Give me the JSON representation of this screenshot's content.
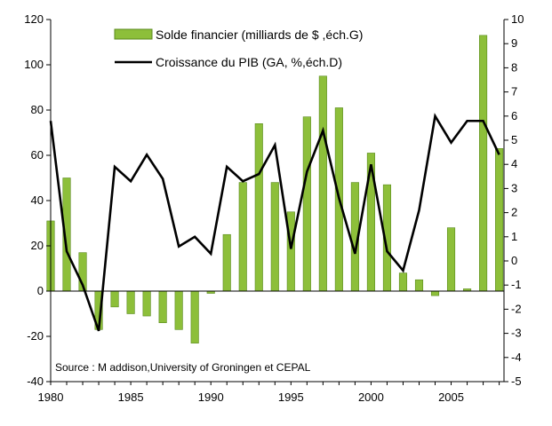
{
  "chart_data": {
    "type": "bar+line",
    "title": "",
    "categories": [
      1980,
      1981,
      1982,
      1983,
      1984,
      1985,
      1986,
      1987,
      1988,
      1989,
      1990,
      1991,
      1992,
      1993,
      1994,
      1995,
      1996,
      1997,
      1998,
      1999,
      2000,
      2001,
      2002,
      2003,
      2004,
      2005,
      2006,
      2007,
      2008
    ],
    "x_tick_labels": [
      "1980",
      "1985",
      "1990",
      "1995",
      "2000",
      "2005"
    ],
    "left_axis": {
      "ylim": [
        -40,
        120
      ],
      "ticks": [
        "-40",
        "-20",
        "0",
        "20",
        "40",
        "60",
        "80",
        "100",
        "120"
      ]
    },
    "right_axis": {
      "ylim": [
        -5,
        10
      ],
      "ticks": [
        "-5",
        "-4",
        "-3",
        "-2",
        "-1",
        "0",
        "1",
        "2",
        "3",
        "4",
        "5",
        "6",
        "7",
        "8",
        "9",
        "10"
      ]
    },
    "series": [
      {
        "name": "Solde financier (milliards de $ ,éch.G)",
        "kind": "bar",
        "axis": "left",
        "color": "#8dbf3a",
        "edge_color": "#5a8a1e",
        "values": [
          31,
          50,
          17,
          -17,
          -7,
          -10,
          -11,
          -14,
          -17,
          -23,
          -1,
          25,
          48,
          74,
          48,
          35,
          77,
          95,
          81,
          48,
          61,
          47,
          8,
          5,
          -2,
          28,
          1,
          113,
          63
        ]
      },
      {
        "name": "Croissance du PIB (GA, %,éch.D)",
        "kind": "line",
        "axis": "right",
        "color": "#000000",
        "values": [
          5.8,
          0.4,
          -1.0,
          -2.9,
          3.9,
          3.3,
          4.4,
          3.4,
          0.6,
          1.0,
          0.3,
          3.9,
          3.3,
          3.6,
          4.8,
          0.5,
          3.7,
          5.4,
          2.6,
          0.3,
          4.0,
          0.4,
          -0.4,
          2.1,
          6.0,
          4.9,
          5.8,
          5.8,
          4.4
        ]
      }
    ],
    "annotation": "Source : M addison,University of Groningen et  CEPAL"
  }
}
